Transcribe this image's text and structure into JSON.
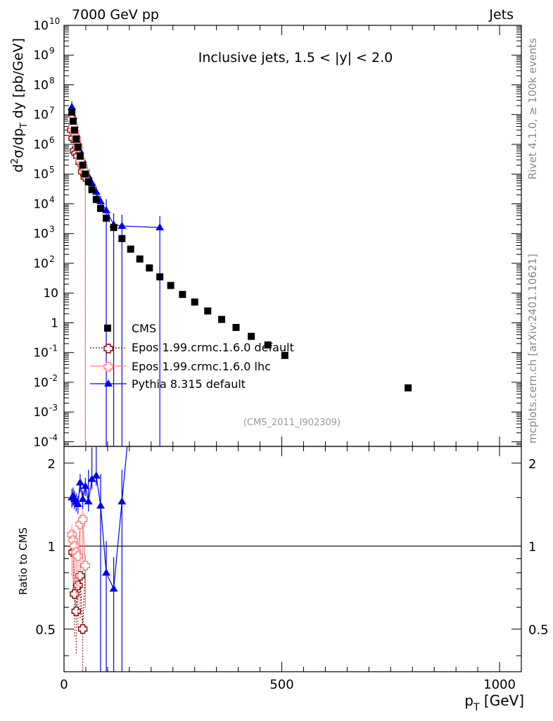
{
  "header": {
    "left_title": "7000 GeV pp",
    "right_title": "Jets"
  },
  "side_labels": {
    "rivet": "Rivet 4.1.0, ≥ 100k events",
    "mcplots": "mcplots.cern.ch [arXiv:2401.10621]"
  },
  "chart_data": [
    {
      "type": "scatter",
      "panel": "main",
      "title": "Inclusive jets, 1.5 < |y| < 2.0",
      "analysis_label": "(CMS_2011_I902309)",
      "ylabel": "d²σ/dp_T dy [pb/GeV]",
      "yscale": "log",
      "ylim": [
        7e-05,
        10000000000
      ],
      "xlim": [
        0,
        1050
      ],
      "ytick_labels": [
        {
          "v": 10000000000,
          "base": "10",
          "exp": "10"
        },
        {
          "v": 1000000000,
          "base": "10",
          "exp": "9"
        },
        {
          "v": 100000000,
          "base": "10",
          "exp": "8"
        },
        {
          "v": 10000000,
          "base": "10",
          "exp": "7"
        },
        {
          "v": 1000000,
          "base": "10",
          "exp": "6"
        },
        {
          "v": 100000,
          "base": "10",
          "exp": "5"
        },
        {
          "v": 10000,
          "base": "10",
          "exp": "4"
        },
        {
          "v": 1000,
          "base": "10",
          "exp": "3"
        },
        {
          "v": 100,
          "base": "10",
          "exp": "2"
        },
        {
          "v": 10,
          "base": "10",
          "exp": ""
        },
        {
          "v": 1,
          "base": "1",
          "exp": ""
        },
        {
          "v": 0.1,
          "base": "10",
          "exp": "-1"
        },
        {
          "v": 0.01,
          "base": "10",
          "exp": "-2"
        },
        {
          "v": 0.001,
          "base": "10",
          "exp": "-3"
        },
        {
          "v": 0.0001,
          "base": "10",
          "exp": "-4"
        }
      ],
      "legend_position": "center-left",
      "series": [
        {
          "name": "CMS",
          "color": "#000000",
          "marker": "square",
          "x": [
            18,
            21,
            24,
            28,
            32,
            37,
            43,
            49,
            56,
            64,
            74,
            84,
            97,
            114,
            133,
            153,
            174,
            196,
            220,
            245,
            272,
            300,
            330,
            362,
            395,
            430,
            468,
            507,
            548,
            592,
            638,
            686,
            737,
            790
          ],
          "y": [
            12000000,
            6000000,
            3000000,
            1500000,
            800000,
            400000,
            200000,
            100000,
            55000,
            30000,
            14000,
            7000,
            3300,
            1600,
            680,
            300,
            140,
            70,
            35,
            18,
            9,
            5,
            2.5,
            1.3,
            0.7,
            0.35,
            0.18,
            0.08,
            null,
            null,
            null,
            null,
            null,
            0.0065
          ]
        },
        {
          "name": "Epos 1.99.crmc.1.6.0 default",
          "color": "#800000",
          "marker": "open-cross",
          "x": [
            18,
            21,
            24,
            28,
            32,
            37,
            43,
            49
          ],
          "y": [
            3000000,
            1600000,
            600000,
            500000,
            400000,
            250000,
            120000,
            80000
          ]
        },
        {
          "name": "Epos 1.99.crmc.1.6.0 lhc",
          "color": "#ff8080",
          "marker": "open-cross",
          "x": [
            18,
            21,
            24,
            28,
            32,
            37,
            43,
            49
          ],
          "y": [
            7000000,
            4000000,
            2500000,
            1500000,
            800000,
            300000,
            180000,
            120000
          ]
        },
        {
          "name": "Pythia 8.315 default",
          "color": "#0000ee",
          "marker": "triangle",
          "x": [
            18,
            21,
            24,
            28,
            32,
            37,
            43,
            49,
            56,
            64,
            74,
            84,
            97,
            114,
            133,
            220
          ],
          "y": [
            18000000,
            9000000,
            4500000,
            2200000,
            1200000,
            600000,
            300000,
            150000,
            85000,
            50000,
            25000,
            12000,
            6000,
            2000,
            1800,
            1600
          ]
        }
      ]
    },
    {
      "type": "scatter",
      "panel": "ratio",
      "ylabel": "Ratio to CMS",
      "xlabel": "p_T [GeV]",
      "ylim": [
        0.35,
        2.3
      ],
      "xlim": [
        0,
        1050
      ],
      "reference_line": 1,
      "ytick_labels": [
        "0.5",
        "1",
        "2"
      ],
      "xtick_labels": [
        "0",
        "500",
        "1000"
      ],
      "series": [
        {
          "name": "Epos 1.99.crmc.1.6.0 default",
          "color": "#800000",
          "x": [
            21,
            24,
            28,
            32,
            37,
            43,
            49
          ],
          "y": [
            0.95,
            0.67,
            0.58,
            0.72,
            0.78,
            0.5,
            0.85
          ]
        },
        {
          "name": "Epos 1.99.crmc.1.6.0 lhc",
          "color": "#ff8080",
          "x": [
            18,
            21,
            24,
            28,
            32,
            37,
            43,
            49
          ],
          "y": [
            1.1,
            1.05,
            1.0,
            0.95,
            0.92,
            1.2,
            1.25,
            0.85
          ]
        },
        {
          "name": "Pythia 8.315 default",
          "color": "#0000ee",
          "x": [
            18,
            21,
            24,
            28,
            32,
            37,
            43,
            49,
            56,
            64,
            74,
            84,
            97,
            114,
            133
          ],
          "y": [
            1.5,
            1.52,
            1.48,
            1.45,
            1.42,
            1.7,
            1.48,
            1.65,
            1.45,
            1.75,
            1.8,
            1.4,
            0.8,
            0.7,
            1.45
          ]
        }
      ]
    }
  ]
}
